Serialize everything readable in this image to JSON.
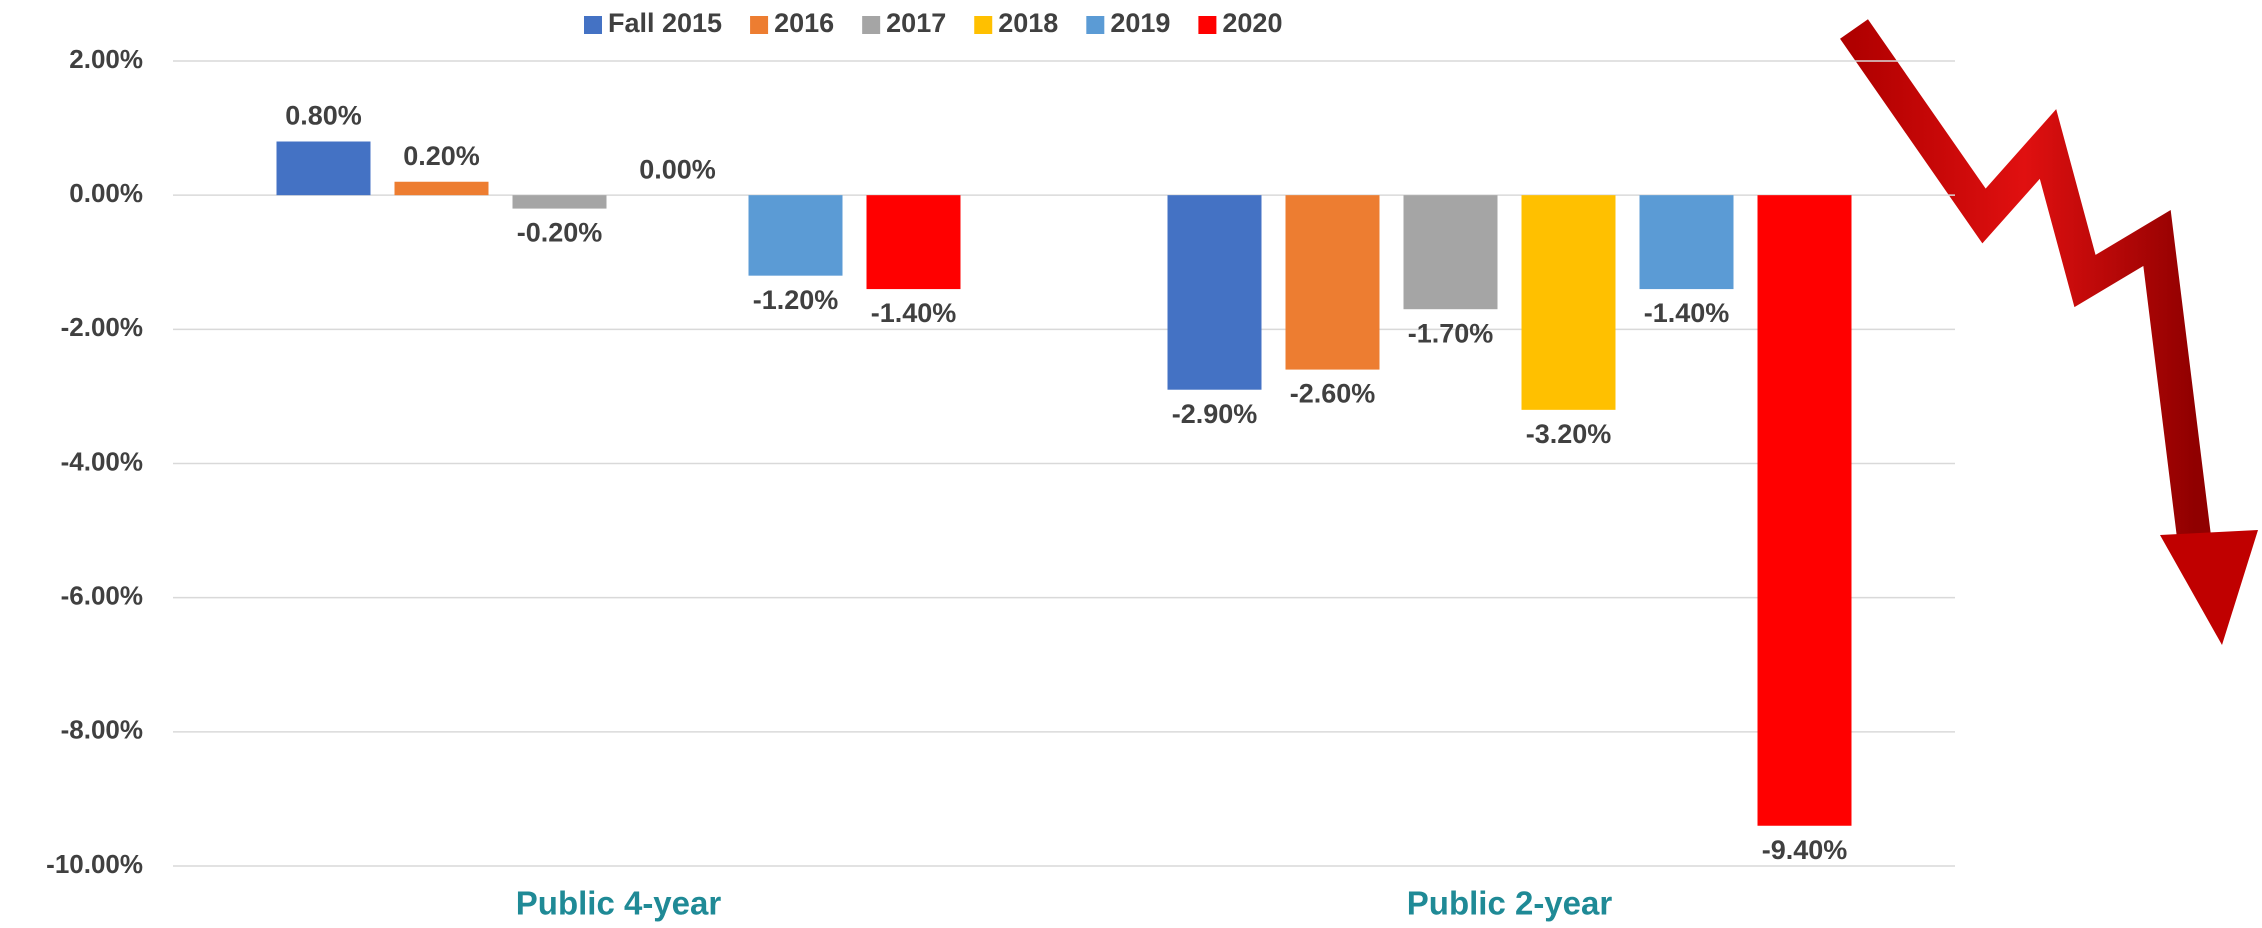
{
  "chart_data": {
    "type": "bar",
    "categories": [
      "Public 4-year",
      "Public 2-year"
    ],
    "series": [
      {
        "name": "Fall 2015",
        "color": "#4472c4",
        "values": [
          0.8,
          -2.9
        ],
        "value_labels": [
          "0.80%",
          "-2.90%"
        ]
      },
      {
        "name": "2016",
        "color": "#ed7d31",
        "values": [
          0.2,
          -2.6
        ],
        "value_labels": [
          "0.20%",
          "-2.60%"
        ]
      },
      {
        "name": "2017",
        "color": "#a5a5a5",
        "values": [
          -0.2,
          -1.7
        ],
        "value_labels": [
          "-0.20%",
          "-1.70%"
        ]
      },
      {
        "name": "2018",
        "color": "#ffc000",
        "values": [
          0,
          -3.2
        ],
        "value_labels": [
          "0.00%",
          "-3.20%"
        ]
      },
      {
        "name": "2019",
        "color": "#5b9bd5",
        "values": [
          -1.2,
          -1.4
        ],
        "value_labels": [
          "-1.20%",
          "-1.40%"
        ]
      },
      {
        "name": "2020",
        "color": "#ff0000",
        "values": [
          -1.4,
          -9.4
        ],
        "value_labels": [
          "-1.40%",
          "-9.40%"
        ]
      }
    ],
    "ylim": [
      -10,
      2
    ],
    "yticks": [
      {
        "value": -10,
        "label": "-10.00%"
      },
      {
        "value": -8,
        "label": "-8.00%"
      },
      {
        "value": -6,
        "label": "-6.00%"
      },
      {
        "value": -4,
        "label": "-4.00%"
      },
      {
        "value": -2,
        "label": "-2.00%"
      },
      {
        "value": 0,
        "label": "0.00%"
      },
      {
        "value": 2,
        "label": "2.00%"
      }
    ],
    "grid": true,
    "legend": "top"
  }
}
